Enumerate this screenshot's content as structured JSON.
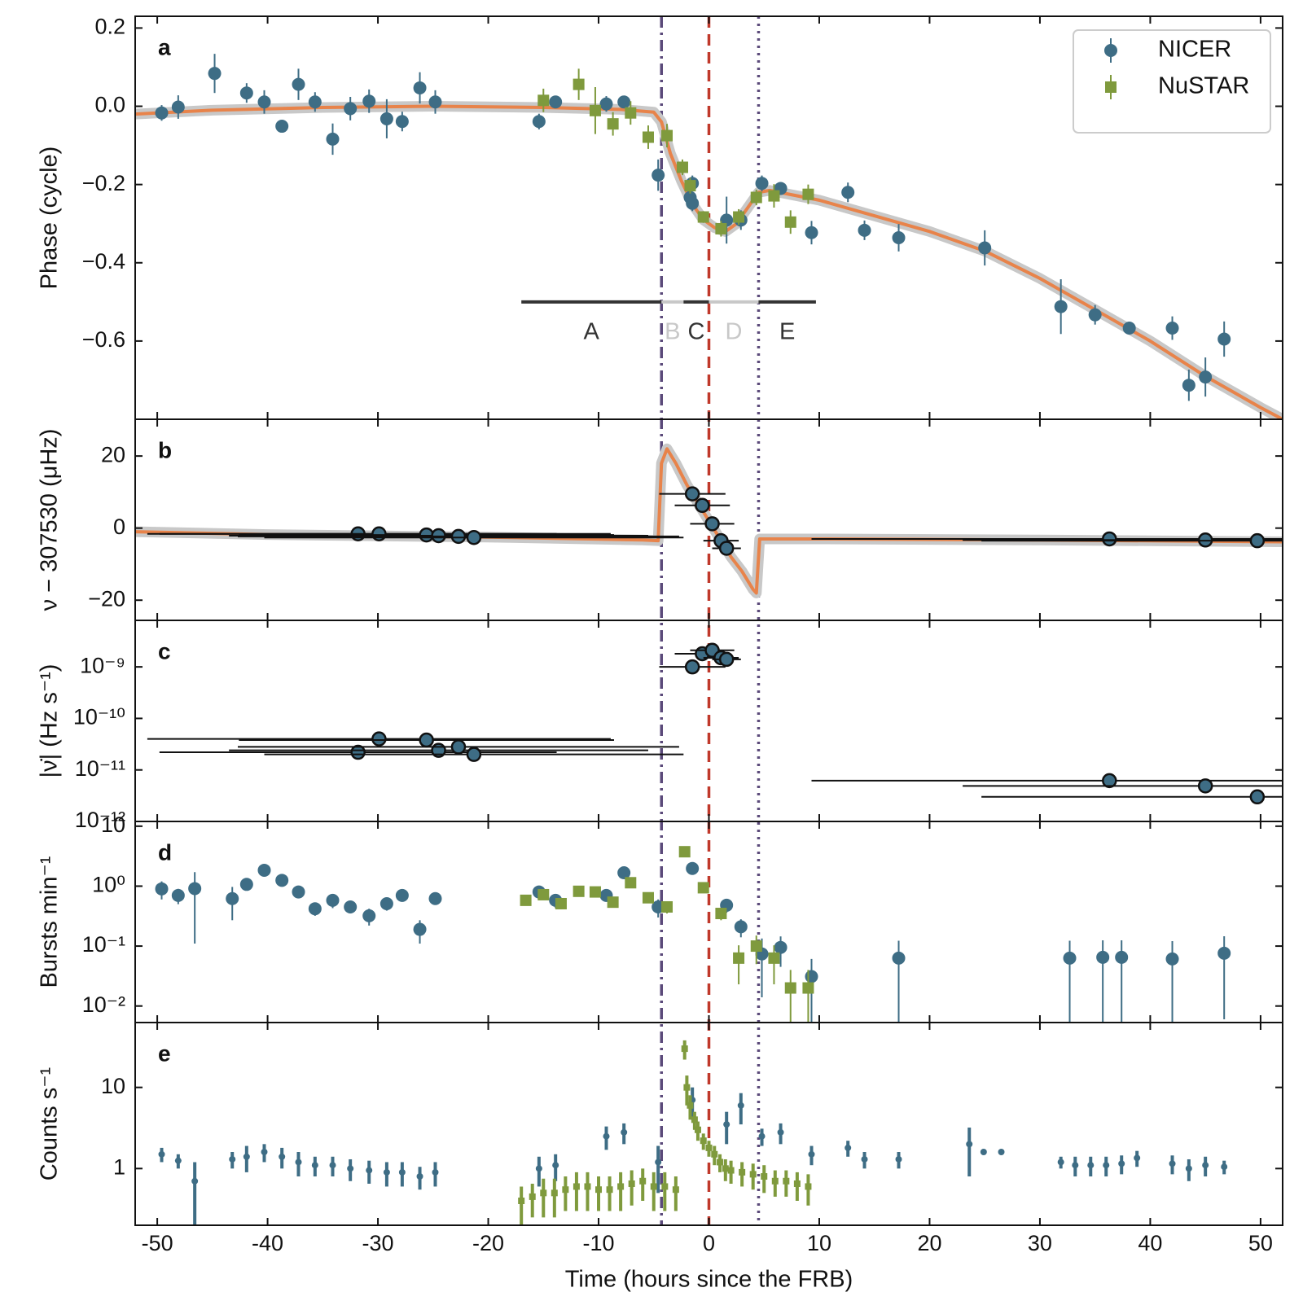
{
  "chart_data": [
    {
      "type": "scatter",
      "panel": "a",
      "ylabel": "Phase (cycle)",
      "log": false,
      "ylim": [
        -0.8,
        0.23
      ],
      "yticks": [
        {
          "value": 0.2,
          "label": "0.2"
        },
        {
          "value": 0.0,
          "label": "0.0"
        },
        {
          "value": -0.2,
          "label": "−0.2"
        },
        {
          "value": -0.4,
          "label": "−0.4"
        },
        {
          "value": -0.6,
          "label": "−0.6"
        }
      ],
      "legend": "upper right",
      "series": [
        {
          "name": "NICER",
          "color": "#3e6d85",
          "marker": "o",
          "x": [
            -49.6,
            -48.1,
            -44.8,
            -41.9,
            -40.3,
            -38.7,
            -37.2,
            -35.7,
            -34.1,
            -32.5,
            -30.8,
            -29.2,
            -27.8,
            -26.2,
            -24.8,
            -15.4,
            -13.9,
            -9.3,
            -7.7,
            -4.6,
            -1.5,
            -1.7,
            -1.5,
            1.6,
            2.9,
            4.8,
            6.5,
            9.3,
            12.6,
            14.1,
            17.2,
            25.0,
            31.9,
            35.0,
            38.1,
            42.0,
            43.5,
            45.0,
            46.7
          ],
          "values": [
            -0.017,
            -0.002,
            0.084,
            0.034,
            0.011,
            -0.051,
            0.056,
            0.011,
            -0.084,
            -0.006,
            0.013,
            -0.032,
            -0.039,
            0.047,
            0.011,
            -0.039,
            0.011,
            0.006,
            0.011,
            -0.176,
            -0.197,
            -0.233,
            -0.248,
            -0.291,
            -0.291,
            -0.197,
            -0.21,
            -0.323,
            -0.22,
            -0.317,
            -0.336,
            -0.362,
            -0.512,
            -0.533,
            -0.567,
            -0.567,
            -0.713,
            -0.692,
            -0.595
          ],
          "errors": [
            0.02,
            0.03,
            0.05,
            0.025,
            0.03,
            0.015,
            0.04,
            0.025,
            0.04,
            0.03,
            0.03,
            0.05,
            0.025,
            0.04,
            0.03,
            0.02,
            0.015,
            0.02,
            0.015,
            0.04,
            0.02,
            0.02,
            0.02,
            0.06,
            0.025,
            0.02,
            0.015,
            0.03,
            0.025,
            0.025,
            0.035,
            0.045,
            0.07,
            0.025,
            0.015,
            0.03,
            0.04,
            0.05,
            0.045
          ]
        },
        {
          "name": "NuSTAR",
          "color": "#7f9a3d",
          "marker": "s",
          "x": [
            -15.0,
            -11.8,
            -10.3,
            -8.7,
            -7.1,
            -5.5,
            -3.8,
            -2.4,
            -1.7,
            -0.5,
            1.1,
            2.7,
            4.3,
            5.9,
            7.4,
            9.0
          ],
          "values": [
            0.015,
            0.056,
            -0.011,
            -0.045,
            -0.017,
            -0.079,
            -0.075,
            -0.156,
            -0.203,
            -0.283,
            -0.313,
            -0.283,
            -0.233,
            -0.229,
            -0.296,
            -0.225
          ],
          "errors": [
            0.03,
            0.04,
            0.06,
            0.03,
            0.03,
            0.03,
            0.03,
            0.02,
            0.02,
            0.015,
            0.02,
            0.02,
            0.02,
            0.03,
            0.03,
            0.025
          ]
        }
      ],
      "model": {
        "color": "#e8834a",
        "band_color": "#c8c8c8",
        "x": [
          -52,
          -45,
          -35,
          -25,
          -15,
          -8,
          -5,
          -4.3,
          -3.5,
          -2.5,
          -1.5,
          -0.5,
          0.5,
          1.5,
          2.5,
          3.5,
          4.5,
          5.5,
          10,
          15,
          20,
          25,
          30,
          35,
          40,
          45,
          50,
          52
        ],
        "values": [
          -0.02,
          -0.01,
          -0.003,
          0,
          -0.003,
          -0.008,
          -0.015,
          -0.04,
          -0.12,
          -0.19,
          -0.25,
          -0.29,
          -0.31,
          -0.32,
          -0.3,
          -0.26,
          -0.22,
          -0.215,
          -0.24,
          -0.28,
          -0.32,
          -0.37,
          -0.44,
          -0.52,
          -0.6,
          -0.69,
          -0.77,
          -0.8
        ]
      },
      "intervals_y": -0.5,
      "intervals": [
        {
          "label": "A",
          "start": -17,
          "end": -4.3,
          "color": "#333333"
        },
        {
          "label": "B",
          "start": -4.3,
          "end": -2.3,
          "color": "#c8c8c8"
        },
        {
          "label": "C",
          "start": -2.3,
          "end": 0,
          "color": "#333333"
        },
        {
          "label": "D",
          "start": 0,
          "end": 4.5,
          "color": "#c8c8c8"
        },
        {
          "label": "E",
          "start": 4.5,
          "end": 9.7,
          "color": "#333333"
        }
      ]
    },
    {
      "type": "scatter",
      "panel": "b",
      "ylabel": "ν − 307530 (μHz)",
      "log": false,
      "ylim": [
        -25.6,
        30.2
      ],
      "yticks": [
        20,
        0,
        {
          "value": -20,
          "label": "−20"
        }
      ],
      "series": [
        {
          "color": "#3e6d85",
          "edgecolor": "#111111",
          "marker": "o",
          "x": [
            -31.8,
            -29.9,
            -25.6,
            -24.5,
            -22.7,
            -21.3,
            -1.5,
            -0.6,
            0.3,
            1.1,
            1.6,
            36.3,
            45.0,
            49.7
          ],
          "values": [
            -1.6,
            -1.6,
            -1.9,
            -2.1,
            -2.3,
            -2.6,
            9.5,
            6.3,
            1.2,
            -3.5,
            -5.6,
            -3.0,
            -3.3,
            -3.5
          ],
          "xerr": [
            18,
            21,
            17,
            19,
            20,
            19,
            3,
            2.5,
            2,
            1.6,
            1.3,
            27,
            22,
            25
          ]
        }
      ],
      "model": {
        "color": "#e8834a",
        "band_color": "#c8c8c8",
        "x": [
          -52,
          -40,
          -20,
          -6,
          -4.6,
          -4.3,
          -3.8,
          -3,
          -2,
          -1,
          0,
          1,
          2,
          3,
          4,
          4.3,
          4.6,
          10,
          30,
          52
        ],
        "values": [
          -1,
          -1.8,
          -2.5,
          -3.3,
          -3.5,
          18,
          22,
          18,
          12,
          7,
          2,
          -3,
          -8,
          -12,
          -17,
          -18,
          -3,
          -3,
          -3.3,
          -3.8
        ]
      }
    },
    {
      "type": "scatter",
      "panel": "c",
      "ylabel": "|ν̇| (Hz s⁻¹)",
      "log": true,
      "ylim": [
        1e-12,
        8e-09
      ],
      "yticks": [
        {
          "value": 1e-09,
          "label": "10⁻⁹"
        },
        {
          "value": 1e-10,
          "label": "10⁻¹⁰"
        },
        {
          "value": 1e-11,
          "label": "10⁻¹¹"
        },
        {
          "value": 1e-12,
          "label": "10⁻¹²"
        }
      ],
      "series": [
        {
          "color": "#3e6d85",
          "edgecolor": "#111111",
          "marker": "o",
          "x": [
            -31.8,
            -29.9,
            -25.6,
            -24.5,
            -22.7,
            -21.3,
            -1.5,
            -0.6,
            0.3,
            1.1,
            1.6,
            36.3,
            45.0,
            49.7
          ],
          "values": [
            2.2e-11,
            4e-11,
            3.8e-11,
            2.4e-11,
            2.8e-11,
            2e-11,
            1e-09,
            1.8e-09,
            2.1e-09,
            1.5e-09,
            1.4e-09,
            6.2e-12,
            4.9e-12,
            3e-12
          ],
          "xerr": [
            18,
            21,
            17,
            19,
            20,
            19,
            3,
            2.5,
            2,
            1.6,
            1.3,
            27,
            22,
            25
          ]
        }
      ]
    },
    {
      "type": "scatter",
      "panel": "d",
      "ylabel": "Bursts min⁻¹",
      "log": true,
      "ylim": [
        0.0053,
        12
      ],
      "yticks": [
        {
          "value": 10,
          "label": "10"
        },
        {
          "value": 1,
          "label": "10⁰"
        },
        {
          "value": 0.1,
          "label": "10⁻¹"
        },
        {
          "value": 0.01,
          "label": "10⁻²"
        }
      ],
      "series": [
        {
          "name": "NICER",
          "color": "#3e6d85",
          "marker": "o",
          "x": [
            -49.6,
            -48.1,
            -46.6,
            -43.2,
            -41.9,
            -40.3,
            -38.7,
            -37.2,
            -35.7,
            -34.1,
            -32.5,
            -30.8,
            -29.2,
            -27.8,
            -26.2,
            -24.8,
            -15.4,
            -13.9,
            -9.3,
            -7.7,
            -4.6,
            -1.5,
            1.6,
            2.9,
            4.8,
            6.5,
            9.3,
            17.2,
            32.7,
            35.7,
            37.4,
            42.0,
            46.7
          ],
          "values": [
            0.9,
            0.7,
            0.91,
            0.62,
            1.07,
            1.84,
            1.25,
            0.8,
            0.42,
            0.58,
            0.45,
            0.32,
            0.51,
            0.7,
            0.19,
            0.62,
            0.8,
            0.58,
            0.7,
            1.67,
            0.45,
            1.97,
            0.48,
            0.21,
            0.074,
            0.095,
            0.031,
            0.063,
            0.063,
            0.065,
            0.065,
            0.061,
            0.076
          ],
          "errors": [
            0.3,
            0.2,
            0.8,
            0.35,
            0.2,
            0.2,
            0.2,
            0.15,
            0.1,
            0.15,
            0.1,
            0.1,
            0.12,
            0.15,
            0.08,
            0.12,
            0.2,
            0.15,
            0.15,
            0.35,
            0.15,
            0.3,
            0.12,
            0.07,
            0.06,
            0.05,
            0.03,
            0.06,
            0.06,
            0.06,
            0.06,
            0.06,
            0.07
          ]
        },
        {
          "name": "NuSTAR",
          "color": "#7f9a3d",
          "marker": "s",
          "x": [
            -16.6,
            -15.0,
            -13.4,
            -11.8,
            -10.3,
            -8.7,
            -7.1,
            -5.5,
            -3.8,
            -2.2,
            -0.5,
            1.1,
            2.7,
            4.3,
            5.9,
            7.4,
            9.0
          ],
          "values": [
            0.58,
            0.72,
            0.51,
            0.82,
            0.8,
            0.54,
            1.14,
            0.64,
            0.45,
            3.75,
            0.94,
            0.35,
            0.063,
            0.1,
            0.063,
            0.02,
            0.02
          ],
          "errors": [
            0.1,
            0.1,
            0.1,
            0.1,
            0.1,
            0.1,
            0.15,
            0.1,
            0.1,
            0.5,
            0.15,
            0.08,
            0.04,
            0.05,
            0.04,
            0.02,
            0.02
          ]
        }
      ]
    },
    {
      "type": "scatter",
      "panel": "e",
      "ylabel": "Counts s⁻¹",
      "log": true,
      "ylim": [
        0.2,
        63
      ],
      "yticks": [
        10,
        1
      ],
      "xlabel": "Time (hours since the FRB)",
      "xlim": [
        -52,
        52
      ],
      "xticks": [
        -50,
        -40,
        -30,
        -20,
        -10,
        0,
        10,
        20,
        30,
        40,
        50
      ],
      "series": [
        {
          "name": "NICER",
          "color": "#3e6d85",
          "marker": "o",
          "x": [
            -49.6,
            -48.1,
            -46.6,
            -43.2,
            -41.9,
            -40.3,
            -38.7,
            -37.2,
            -35.7,
            -34.1,
            -32.5,
            -30.8,
            -29.2,
            -27.8,
            -26.2,
            -24.8,
            -15.4,
            -13.9,
            -9.3,
            -7.7,
            -4.6,
            -1.5,
            1.6,
            2.9,
            4.8,
            6.5,
            9.3,
            12.6,
            14.1,
            17.2,
            23.6,
            24.9,
            26.5,
            31.9,
            33.2,
            34.6,
            36.0,
            37.4,
            38.8,
            42.0,
            43.5,
            45.0,
            46.7
          ],
          "values": [
            1.5,
            1.25,
            0.7,
            1.3,
            1.4,
            1.6,
            1.4,
            1.2,
            1.1,
            1.1,
            1.0,
            0.95,
            0.9,
            0.9,
            0.8,
            0.9,
            1.0,
            1.1,
            2.5,
            2.8,
            1.2,
            7,
            3.5,
            6,
            2.5,
            2.8,
            1.5,
            1.8,
            1.3,
            1.3,
            2,
            1.6,
            1.6,
            1.2,
            1.1,
            1.1,
            1.1,
            1.15,
            1.35,
            1.15,
            1.0,
            1.1,
            1.05
          ],
          "errors": [
            0.3,
            0.25,
            0.5,
            0.3,
            0.5,
            0.4,
            0.4,
            0.4,
            0.3,
            0.3,
            0.3,
            0.3,
            0.3,
            0.3,
            0.25,
            0.3,
            0.4,
            0.4,
            0.8,
            0.8,
            0.7,
            3,
            1.5,
            2.5,
            0.6,
            0.8,
            0.4,
            0.4,
            0.3,
            0.3,
            1.2,
            0.1,
            0.1,
            0.2,
            0.3,
            0.3,
            0.3,
            0.3,
            0.3,
            0.3,
            0.3,
            0.3,
            0.2
          ]
        },
        {
          "name": "NuSTAR",
          "color": "#7f9a3d",
          "marker": "s",
          "x": [
            -17,
            -16,
            -15,
            -14,
            -13,
            -12,
            -11,
            -10,
            -9,
            -8,
            -7,
            -6,
            -5,
            -4,
            -3,
            -2.2,
            -2,
            -1.7,
            -1.3,
            -1,
            -0.5,
            0,
            0.5,
            1,
            1.5,
            2,
            3,
            4,
            5,
            6,
            7,
            8,
            9
          ],
          "values": [
            0.4,
            0.45,
            0.5,
            0.5,
            0.55,
            0.6,
            0.6,
            0.55,
            0.55,
            0.6,
            0.65,
            0.7,
            0.6,
            0.6,
            0.55,
            30,
            10,
            6,
            4,
            3,
            2.2,
            1.8,
            1.5,
            1.2,
            1.0,
            0.95,
            0.9,
            0.85,
            0.8,
            0.7,
            0.7,
            0.65,
            0.6
          ],
          "errors": [
            0.2,
            0.2,
            0.25,
            0.25,
            0.25,
            0.3,
            0.3,
            0.25,
            0.25,
            0.3,
            0.3,
            0.3,
            0.3,
            0.3,
            0.25,
            8,
            4,
            2,
            1,
            0.8,
            0.5,
            0.4,
            0.4,
            0.3,
            0.3,
            0.3,
            0.3,
            0.3,
            0.3,
            0.25,
            0.25,
            0.25,
            0.25
          ]
        }
      ]
    }
  ],
  "vlines": [
    {
      "x": -4.3,
      "color": "#5b4a7a",
      "style": "dashdot"
    },
    {
      "x": 0,
      "color": "#c0392b",
      "style": "dashed"
    },
    {
      "x": 4.5,
      "color": "#5b4a7a",
      "style": "dotted"
    }
  ]
}
